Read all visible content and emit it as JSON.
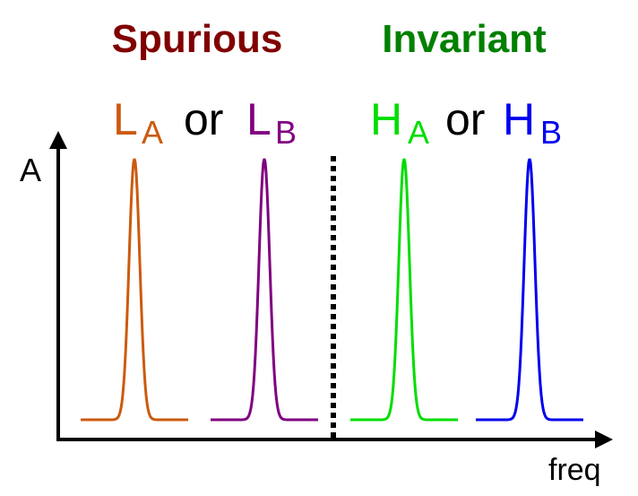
{
  "headings": {
    "left": {
      "text": "Spurious",
      "color": "#800000"
    },
    "right": {
      "text": "Invariant",
      "color": "#008000"
    }
  },
  "groups": [
    {
      "items": [
        {
          "letter": "L",
          "subscript": "A",
          "color": "#cc5a0f"
        },
        {
          "letter": "L",
          "subscript": "B",
          "color": "#800080"
        }
      ],
      "connector": "or"
    },
    {
      "items": [
        {
          "letter": "H",
          "subscript": "A",
          "color": "#00dd00"
        },
        {
          "letter": "H",
          "subscript": "B",
          "color": "#0000ee"
        }
      ],
      "connector": "or"
    }
  ],
  "axes": {
    "y_label": "A",
    "x_label": "freq"
  }
}
